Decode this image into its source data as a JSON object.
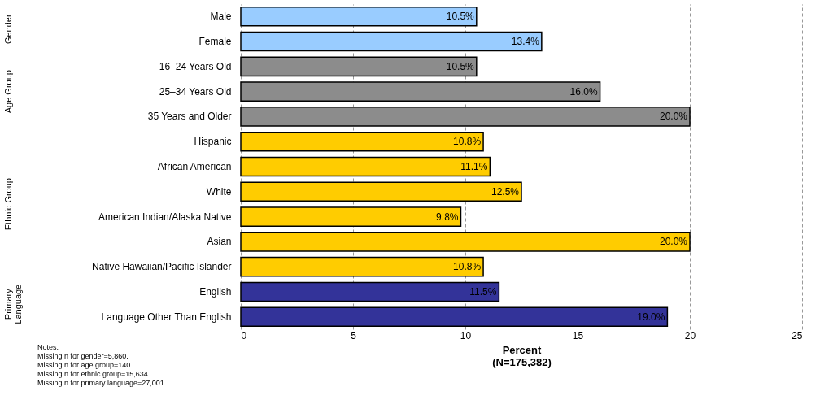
{
  "chart_data": {
    "type": "bar",
    "orientation": "horizontal",
    "categories": [
      "Male",
      "Female",
      "16–24 Years Old",
      "25–34 Years Old",
      "35 Years and Older",
      "Hispanic",
      "African American",
      "White",
      "American Indian/Alaska Native",
      "Asian",
      "Native Hawaiian/Pacific Islander",
      "English",
      "Language Other Than English"
    ],
    "values": [
      10.5,
      13.4,
      10.5,
      16.0,
      20.0,
      10.8,
      11.1,
      12.5,
      9.8,
      20.0,
      10.8,
      11.5,
      19.0
    ],
    "value_labels": [
      "10.5%",
      "13.4%",
      "10.5%",
      "16.0%",
      "20.0%",
      "10.8%",
      "11.1%",
      "12.5%",
      "9.8%",
      "20.0%",
      "10.8%",
      "11.5%",
      "19.0%"
    ],
    "colors": [
      "#99ccff",
      "#99ccff",
      "#8c8c8c",
      "#8c8c8c",
      "#8c8c8c",
      "#ffcc00",
      "#ffcc00",
      "#ffcc00",
      "#ffcc00",
      "#ffcc00",
      "#ffcc00",
      "#333399",
      "#333399"
    ],
    "xlabel": "Percent\n(N=175,382)",
    "xlim": [
      0,
      25
    ],
    "xticks": [
      0,
      5,
      10,
      15,
      20,
      25
    ],
    "grid": "x",
    "annotations": [
      "Gender",
      "Age Group",
      "Ethnic Group",
      "Primary\nLanguage",
      "Notes:",
      "Missing n for gender=5,860.",
      "Missing n for age group=140.",
      "Missing n for ethnic group=15,634.",
      "Missing n for primary language=27,001."
    ]
  }
}
